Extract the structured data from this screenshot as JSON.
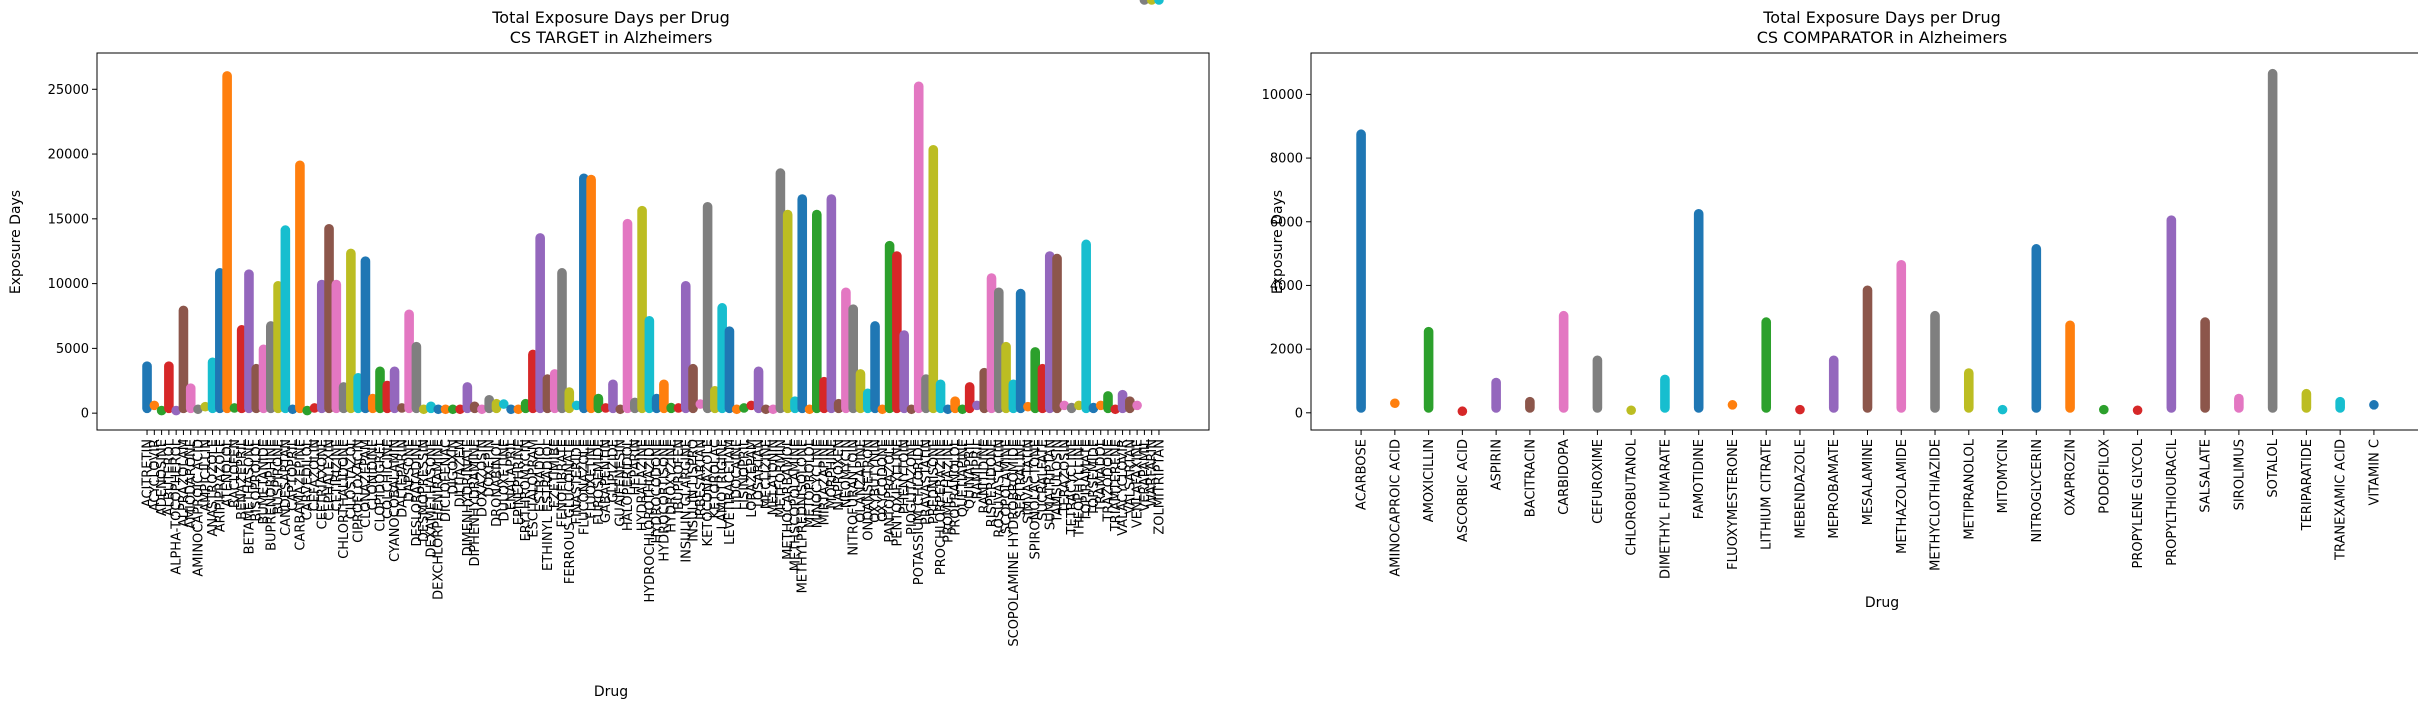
{
  "figure": {
    "charts": [
      {
        "title_line1": "Total Exposure Days per Drug",
        "title_line2": "CS TARGET in Alzheimers",
        "xlabel": "Drug",
        "ylabel": "Exposure Days"
      },
      {
        "title_line1": "Total Exposure Days per Drug",
        "title_line2": "CS COMPARATOR in Alzheimers",
        "xlabel": "Drug",
        "ylabel": "Exposure Days"
      }
    ]
  },
  "palette": [
    "#1f77b4",
    "#ff7f0e",
    "#2ca02c",
    "#d62728",
    "#9467bd",
    "#8c564b",
    "#e377c2",
    "#7f7f7f",
    "#bcbd22",
    "#17becf"
  ],
  "chart_data": [
    {
      "type": "scatter",
      "title": "Total Exposure Days per Drug\nCS TARGET in Alzheimers",
      "xlabel": "Drug",
      "ylabel": "Exposure Days",
      "ylim": [
        -1300,
        27800
      ],
      "yticks": [
        0,
        5000,
        10000,
        15000,
        20000,
        25000
      ],
      "grid": false,
      "legend": "none",
      "categories": [
        "ACITRETIN",
        "ACYCLOVIR",
        "ADENOSINE",
        "ALBUTEROL",
        "ALPHA-TOCOPHEROL",
        "ALPRAZOLAM",
        "AMIODARONE",
        "AMINOCAPROIC ACID",
        "AMPICILLIN",
        "ANASTROZOLE",
        "ARIPIPRAZOLE",
        "ATENOLOL",
        "BACLOFEN",
        "BENAZEPRIL",
        "BETAMETHASONE",
        "BISOPROLOL",
        "BUMETANIDE",
        "BUPRENORPHINE",
        "BUSPIRONE",
        "CANDESARTAN",
        "CAPTOPRIL",
        "CARBAMAZEPINE",
        "CARVEDILOL",
        "CEFAZOLIN",
        "CEFTRIAXONE",
        "CEPHALEXIN",
        "CETIRIZINE",
        "CHLORTHALIDONE",
        "CILOSTAZOL",
        "CIPROFLOXACIN",
        "CLONAZEPAM",
        "CLONIDINE",
        "CLOPIDOGREL",
        "COLCHICINE",
        "CYANOCOBALAMIN",
        "DALTEPARIN",
        "DAPSONE",
        "DESLORATADINE",
        "DESMOPRESSIN",
        "DEXAMETHASONE",
        "DEXCHLORPHENIRAMINE",
        "DICLOFENAC",
        "DIGOXIN",
        "DILTIAZEM",
        "DIMENHYDRINATE",
        "DIPHENHYDRAMINE",
        "DOXAZOSIN",
        "DOXEPIN",
        "DRONABINOL",
        "DULOXETINE",
        "ENALAPRIL",
        "EPINEPHRINE",
        "ERYTHROMYCIN",
        "ESCITALOPRAM",
        "ESTRADIOL",
        "ETHINYL ESTRADIOL",
        "EZETIMIBE",
        "FENOFIBRATE",
        "FERROUS GLUCONATE",
        "FINASTERIDE",
        "FLUCONAZOLE",
        "FLUOXETINE",
        "FUROSEMIDE",
        "GABAPENTIN",
        "GLIPIZIDE",
        "GUAIFENESIN",
        "HALOPERIDOL",
        "HEPARIN",
        "HYDRALAZINE",
        "HYDROCHLOROTHIAZIDE",
        "HYDROCODONE",
        "HYDROCORTISONE",
        "HYDROXYZINE",
        "IBUPROFEN",
        "INSULIN GLARGINE",
        "INSULIN LISPRO",
        "IRBESARTAN",
        "KETOCONAZOLE",
        "KETOROLAC",
        "LAMOTRIGINE",
        "LEVETIRACETAM",
        "LIDOCAINE",
        "LISINOPRIL",
        "LORAZEPAM",
        "LOSARTAN",
        "MECLIZINE",
        "MELATONIN",
        "METFORMIN",
        "METHOCARBAMOL",
        "METHSCOPOLAMINE",
        "METHYLPREDNISOLONE",
        "METOPROLOL",
        "MINOCYCLINE",
        "MIRTAZAPINE",
        "MORPHINE",
        "NAPROXEN",
        "NEOMYCIN",
        "NITROFURANTOIN",
        "OLANZAPINE",
        "ONDANSETRON",
        "OXYBUTYNIN",
        "OXYCODONE",
        "PANTOPRAZOLE",
        "PENTOXIFYLLINE",
        "PHENYTOIN",
        "PIOGLITAZONE",
        "POTASSIUM CHLORIDE",
        "PRAVASTATIN",
        "PREDNISONE",
        "PROCHLORPERAZINE",
        "PROMETHAZINE",
        "PROPRANOLOL",
        "QUETIAPINE",
        "QUINAPRIL",
        "RAMIPRIL",
        "RANITIDINE",
        "RISPERIDONE",
        "ROSUVASTATIN",
        "SCOPOLAMINE",
        "SCOPOLAMINE HYDROBROMIDE",
        "SERTRALINE",
        "SIMVASTATIN",
        "SPIRONOLACTONE",
        "SUCRALFATE",
        "SUMATRIPTAN",
        "TAMSULOSIN",
        "TERAZOSIN",
        "TETRACYCLINE",
        "THEOPHYLLINE",
        "TOPIRAMATE",
        "TORSEMIDE",
        "TRAMADOL",
        "TRAZODONE",
        "TRIAMTERENE",
        "VALACYCLOVIR",
        "VALSARTAN",
        "VENLAFAXINE",
        "VERAPAMIL",
        "WARFARIN",
        "ZOLMITRIPTAN"
      ],
      "series_max": [
        4000,
        600,
        200,
        4000,
        200,
        8300,
        2300,
        300,
        500,
        4300,
        11200,
        26400,
        400,
        6800,
        11100,
        3800,
        5300,
        7100,
        10200,
        14500,
        300,
        19500,
        200,
        400,
        10300,
        14600,
        10300,
        2400,
        12700,
        3100,
        12100,
        1500,
        3600,
        2500,
        3600,
        400,
        8000,
        5500,
        300,
        900,
        300,
        300,
        300,
        300,
        2400,
        900,
        300,
        1400,
        1100,
        700,
        300,
        300,
        1100,
        4900,
        13900,
        3000,
        3400,
        11200,
        2000,
        600,
        18500,
        18400,
        1500,
        400,
        2600,
        300,
        15000,
        1200,
        16000,
        7500,
        1500,
        2600,
        800,
        400,
        10200,
        3800,
        700,
        16300,
        2100,
        8500,
        6700,
        300,
        400,
        600,
        3600,
        300,
        300,
        18900,
        15700,
        1300,
        16900,
        300,
        15700,
        2800,
        16900,
        1100,
        9700,
        8400,
        3400,
        1900,
        7100,
        300,
        13300,
        12500,
        6400,
        300,
        25600,
        3000,
        20700,
        2600,
        300,
        1300,
        300,
        2400,
        600,
        3500,
        10800,
        9700,
        5500,
        2600,
        9600,
        500,
        5100,
        3800,
        12500,
        12300,
        600,
        800,
        600,
        13400,
        800,
        600,
        1700,
        300,
        1800,
        1300,
        600
      ]
    },
    {
      "type": "scatter",
      "title": "Total Exposure Days per Drug\nCS COMPARATOR in Alzheimers",
      "xlabel": "Drug",
      "ylabel": "Exposure Days",
      "ylim": [
        -540,
        11300
      ],
      "yticks": [
        0,
        2000,
        4000,
        6000,
        8000,
        10000
      ],
      "grid": false,
      "legend": "none",
      "categories": [
        "ACARBOSE",
        "AMINOCAPROIC ACID",
        "AMOXICILLIN",
        "ASCORBIC ACID",
        "ASPIRIN",
        "BACITRACIN",
        "CARBIDOPA",
        "CEFUROXIME",
        "CHLOROBUTANOL",
        "DIMETHYL FUMARATE",
        "FAMOTIDINE",
        "FLUOXYMESTERONE",
        "LITHIUM CITRATE",
        "MEBENDAZOLE",
        "MEPROBAMATE",
        "MESALAMINE",
        "METHAZOLAMIDE",
        "METHYCLOTHIAZIDE",
        "METIPRANOLOL",
        "MITOMYCIN",
        "NITROGLYCERIN",
        "OXAPROZIN",
        "PODOFILOX",
        "PROPYLENE GLYCOL",
        "PROPYLTHIOURACIL",
        "SALSALATE",
        "SIROLIMUS",
        "SOTALOL",
        "TERIPARATIDE",
        "TRANEXAMIC ACID",
        "VITAMIN C"
      ],
      "series_max": [
        8900,
        300,
        2700,
        50,
        1100,
        500,
        3200,
        1800,
        80,
        1200,
        6400,
        250,
        3000,
        100,
        1800,
        4000,
        4800,
        3200,
        1400,
        100,
        5300,
        2900,
        100,
        80,
        6200,
        3000,
        600,
        10800,
        750,
        500,
        250
      ],
      "series_min": [
        0,
        0,
        0,
        0,
        0,
        0,
        0,
        0,
        0,
        0,
        0,
        250,
        0,
        0,
        0,
        0,
        0,
        0,
        0,
        100,
        0,
        0,
        0,
        0,
        0,
        0,
        0,
        0,
        0,
        0,
        0
      ]
    }
  ]
}
